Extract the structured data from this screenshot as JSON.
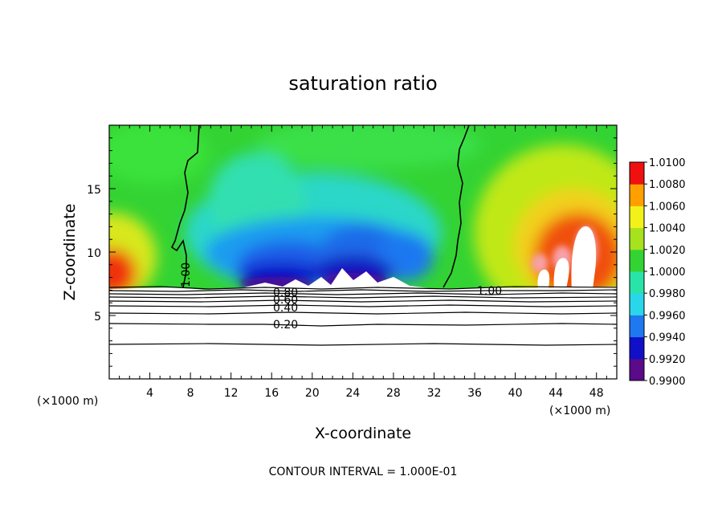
{
  "chart_data": {
    "type": "heatmap",
    "title": "saturation ratio",
    "xlabel": "X-coordinate",
    "ylabel": "Z-coordinate",
    "x_unit_left": "(×1000 m)",
    "x_unit_right": "(×1000 m)",
    "xlim": [
      0,
      50
    ],
    "ylim": [
      0,
      20
    ],
    "x_ticks": [
      4,
      8,
      12,
      16,
      20,
      24,
      28,
      32,
      36,
      40,
      44,
      48
    ],
    "y_ticks": [
      5,
      10,
      15
    ],
    "colorbar": {
      "min": 0.99,
      "max": 1.01,
      "tick_labels": [
        "0.9900",
        "0.9920",
        "0.9940",
        "0.9960",
        "0.9980",
        "1.0000",
        "1.0020",
        "1.0040",
        "1.0060",
        "1.0080",
        "1.0100"
      ],
      "palette": [
        "#5a0a8a",
        "#1010c8",
        "#1e78f0",
        "#2ad7ea",
        "#29e4a8",
        "#33d333",
        "#a6e21e",
        "#f2f21a",
        "#ffa000",
        "#f01010",
        "#f8a0a8"
      ]
    },
    "contour_interval_text": "CONTOUR INTERVAL = 1.000E-01",
    "contour_labels": [
      "1.00",
      "1.00",
      "0.80",
      "0.60",
      "0.40",
      "0.20"
    ],
    "cloud_base_z": 7.2,
    "contour_levels_below": [
      {
        "level": 0.2,
        "z": 4.2
      },
      {
        "level": 0.4,
        "z": 5.5
      },
      {
        "level": 0.6,
        "z": 6.1
      },
      {
        "level": 0.8,
        "z": 6.6
      }
    ],
    "regions": {
      "dry_columns": [
        {
          "x": [
            8,
            32
          ],
          "z_max": 20,
          "value_min": 0.9905
        }
      ],
      "supersaturated_flanks": [
        {
          "x": [
            0,
            4
          ],
          "z": [
            7.2,
            12
          ],
          "value_max": 1.008
        },
        {
          "x": [
            36,
            50
          ],
          "z": [
            7.2,
            17
          ],
          "value_max": 1.01
        }
      ]
    }
  }
}
